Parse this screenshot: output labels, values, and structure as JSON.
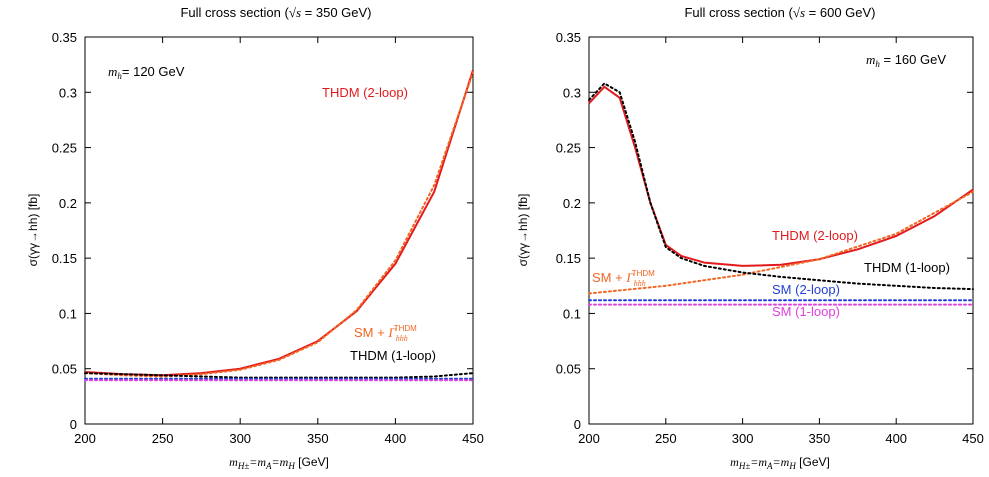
{
  "chart_data": [
    {
      "type": "line",
      "title_prefix": "Full cross section (",
      "title_sqrt": "√s",
      "title_suffix": " = 350 GeV)",
      "xlabel_math": "m",
      "xlabel_sub": "H±",
      "xlabel_mid": "=m",
      "xlabel_sub2": "A",
      "xlabel_mid2": "=m",
      "xlabel_sub3": "H",
      "xlabel_unit": " [GeV]",
      "ylabel": "σ(γγ→hh) [fb]",
      "xlim": [
        200,
        450
      ],
      "ylim": [
        0,
        0.35
      ],
      "xticks": [
        "200",
        "250",
        "300",
        "350",
        "400",
        "450"
      ],
      "yticks": [
        "0",
        "0.05",
        "0.1",
        "0.15",
        "0.2",
        "0.25",
        "0.3",
        "0.35"
      ],
      "mh_label_var": "m",
      "mh_label_sub": "h",
      "mh_label_val": "= 120 GeV",
      "series": [
        {
          "name": "THDM (2-loop)",
          "color": "#e31a1c",
          "style": "solid",
          "x": [
            200,
            225,
            250,
            275,
            300,
            325,
            350,
            375,
            400,
            425,
            450
          ],
          "y": [
            0.047,
            0.045,
            0.044,
            0.046,
            0.05,
            0.059,
            0.075,
            0.102,
            0.145,
            0.21,
            0.32
          ]
        },
        {
          "name": "SM + Γ",
          "color": "#f26522",
          "style": "dotted",
          "x": [
            200,
            225,
            250,
            275,
            300,
            325,
            350,
            375,
            400,
            425,
            450
          ],
          "y": [
            0.046,
            0.044,
            0.043,
            0.045,
            0.049,
            0.058,
            0.074,
            0.103,
            0.148,
            0.216,
            0.318
          ]
        },
        {
          "name": "THDM (1-loop)",
          "color": "#000000",
          "style": "dotted",
          "x": [
            200,
            225,
            250,
            275,
            300,
            325,
            350,
            375,
            400,
            425,
            450
          ],
          "y": [
            0.046,
            0.045,
            0.044,
            0.043,
            0.042,
            0.042,
            0.042,
            0.042,
            0.042,
            0.043,
            0.046
          ]
        },
        {
          "name": "SM (2-loop)",
          "color": "#1f3fd6",
          "style": "dotted",
          "x": [
            200,
            450
          ],
          "y": [
            0.041,
            0.041
          ]
        },
        {
          "name": "SM (1-loop)",
          "color": "#e040e0",
          "style": "dotted",
          "x": [
            200,
            450
          ],
          "y": [
            0.0395,
            0.0395
          ]
        }
      ],
      "labels": {
        "thdm2": "THDM (2-loop)",
        "sm_gamma_prefix": "SM + ",
        "sm_gamma_sym": "Γ",
        "sm_gamma_sub": "hhh",
        "sm_gamma_sup": "THDM",
        "thdm1": "THDM (1-loop)"
      }
    },
    {
      "type": "line",
      "title_prefix": "Full cross section (",
      "title_sqrt": "√s",
      "title_suffix": " = 600 GeV)",
      "xlabel_math": "m",
      "xlabel_sub": "H±",
      "xlabel_mid": "=m",
      "xlabel_sub2": "A",
      "xlabel_mid2": "=m",
      "xlabel_sub3": "H",
      "xlabel_unit": " [GeV]",
      "ylabel": "σ(γγ→hh) [fb]",
      "xlim": [
        200,
        450
      ],
      "ylim": [
        0,
        0.35
      ],
      "xticks": [
        "200",
        "250",
        "300",
        "350",
        "400",
        "450"
      ],
      "yticks": [
        "0",
        "0.05",
        "0.1",
        "0.15",
        "0.2",
        "0.25",
        "0.3",
        "0.35"
      ],
      "mh_label_var": "m",
      "mh_label_sub": "h",
      "mh_label_val": " = 160 GeV",
      "series": [
        {
          "name": "THDM (2-loop)",
          "color": "#e31a1c",
          "style": "solid",
          "x": [
            200,
            210,
            220,
            230,
            240,
            250,
            260,
            275,
            300,
            325,
            350,
            375,
            400,
            425,
            450
          ],
          "y": [
            0.29,
            0.305,
            0.295,
            0.25,
            0.2,
            0.162,
            0.152,
            0.146,
            0.143,
            0.144,
            0.149,
            0.158,
            0.17,
            0.188,
            0.212
          ]
        },
        {
          "name": "SM + Γ",
          "color": "#f26522",
          "style": "dotted",
          "x": [
            200,
            250,
            300,
            350,
            400,
            450
          ],
          "y": [
            0.118,
            0.125,
            0.135,
            0.149,
            0.172,
            0.21
          ]
        },
        {
          "name": "THDM (1-loop)",
          "color": "#000000",
          "style": "dotted",
          "x": [
            200,
            210,
            220,
            230,
            240,
            250,
            260,
            275,
            300,
            325,
            350,
            375,
            400,
            425,
            450
          ],
          "y": [
            0.293,
            0.308,
            0.3,
            0.255,
            0.2,
            0.16,
            0.15,
            0.143,
            0.137,
            0.133,
            0.13,
            0.127,
            0.125,
            0.123,
            0.122
          ]
        },
        {
          "name": "SM (2-loop)",
          "color": "#1f3fd6",
          "style": "dotted",
          "x": [
            200,
            450
          ],
          "y": [
            0.112,
            0.112
          ]
        },
        {
          "name": "SM (1-loop)",
          "color": "#e040e0",
          "style": "dotted",
          "x": [
            200,
            450
          ],
          "y": [
            0.108,
            0.108
          ]
        }
      ],
      "labels": {
        "thdm2": "THDM (2-loop)",
        "sm_gamma_prefix": "SM + ",
        "sm_gamma_sym": "Γ",
        "sm_gamma_sub": "hhh",
        "sm_gamma_sup": "THDM",
        "thdm1": "THDM (1-loop)",
        "sm2": "SM (2-loop)",
        "sm1": "SM (1-loop)"
      }
    }
  ]
}
